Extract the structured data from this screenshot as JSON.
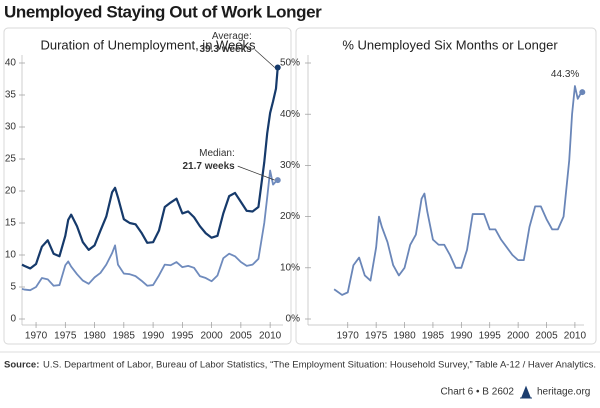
{
  "title": "Unemployed Staying Out of Work Longer",
  "chart_data": [
    {
      "type": "line",
      "title": "Duration of Unemployment, in Weeks",
      "x": [
        1967.6,
        1968,
        1969,
        1970,
        1971,
        1972,
        1973,
        1974,
        1975,
        1975.5,
        1976,
        1977,
        1978,
        1979,
        1980,
        1981,
        1982,
        1983,
        1983.5,
        1984,
        1985,
        1986,
        1987,
        1988,
        1989,
        1990,
        1991,
        1992,
        1993,
        1994,
        1995,
        1996,
        1997,
        1998,
        1999,
        2000,
        2001,
        2002,
        2003,
        2004,
        2005,
        2006,
        2007,
        2008,
        2009,
        2009.5,
        2010,
        2010.5,
        2011,
        2011.3
      ],
      "series": [
        {
          "name": "Average:",
          "end_label": "39.3 weeks",
          "color": "#163a6b",
          "values": [
            8.5,
            8.3,
            7.9,
            8.6,
            11.3,
            12.3,
            10.2,
            9.8,
            13,
            15.5,
            16.3,
            14.5,
            12,
            10.8,
            11.5,
            13.8,
            16,
            19.8,
            20.5,
            19,
            15.6,
            15,
            14.8,
            13.5,
            11.9,
            12,
            13.8,
            17.5,
            18.2,
            18.8,
            16.5,
            16.8,
            15.9,
            14.5,
            13.4,
            12.7,
            13,
            16.5,
            19.2,
            19.7,
            18.3,
            16.9,
            16.8,
            17.5,
            24.5,
            29,
            32.2,
            34,
            36,
            39.3
          ]
        },
        {
          "name": "Median:",
          "end_label": "21.7 weeks",
          "color": "#6f8bbd",
          "values": [
            4.7,
            4.6,
            4.5,
            5,
            6.4,
            6.2,
            5.2,
            5.3,
            8.4,
            9,
            8.2,
            7,
            6,
            5.5,
            6.5,
            7.2,
            8.5,
            10.3,
            11.5,
            8.5,
            7.1,
            7,
            6.7,
            6,
            5.2,
            5.3,
            6.8,
            8.5,
            8.4,
            8.9,
            8.1,
            8.3,
            8,
            6.7,
            6.4,
            5.9,
            6.8,
            9.5,
            10.2,
            9.8,
            8.9,
            8.3,
            8.5,
            9.4,
            15,
            19,
            23.2,
            21,
            21.5,
            21.7
          ]
        }
      ],
      "xlim": [
        1967.6,
        2012.2
      ],
      "xticks": [
        1970,
        1975,
        1980,
        1985,
        1990,
        1995,
        2000,
        2005,
        2010
      ],
      "ylim": [
        0,
        40
      ],
      "yticks": [
        0,
        5,
        10,
        15,
        20,
        25,
        30,
        35,
        40
      ]
    },
    {
      "type": "line",
      "title": "% Unemployed Six Months or Longer",
      "x": [
        1967.6,
        1968,
        1969,
        1970,
        1971,
        1972,
        1973,
        1974,
        1975,
        1975.5,
        1976,
        1977,
        1978,
        1979,
        1980,
        1981,
        1982,
        1983,
        1983.5,
        1984,
        1985,
        1986,
        1987,
        1988,
        1989,
        1990,
        1991,
        1992,
        1993,
        1994,
        1995,
        1996,
        1997,
        1998,
        1999,
        2000,
        2001,
        2002,
        2003,
        2004,
        2005,
        2006,
        2007,
        2008,
        2009,
        2009.5,
        2010,
        2010.5,
        2011,
        2011.3
      ],
      "series": [
        {
          "end_label": "44.3%",
          "color": "#6a86b8",
          "values": [
            5.8,
            5.5,
            4.7,
            5.2,
            10.5,
            12,
            8.5,
            7.5,
            14,
            20,
            18,
            15,
            10.5,
            8.5,
            10,
            14.5,
            16.5,
            23.5,
            24.5,
            21,
            15.5,
            14.5,
            14.5,
            12.5,
            10,
            10,
            13.5,
            20.5,
            20.5,
            20.5,
            17.5,
            17.5,
            15.5,
            14,
            12.5,
            11.5,
            11.5,
            18,
            22,
            22,
            19.5,
            17.5,
            17.5,
            20,
            31,
            40,
            45.5,
            43,
            44,
            44.3
          ]
        }
      ],
      "xlim": [
        1963,
        2011.6
      ],
      "xticks": [
        1970,
        1975,
        1980,
        1985,
        1990,
        1995,
        2000,
        2005,
        2010
      ],
      "ylim": [
        0,
        50
      ],
      "yticks": [
        {
          "value": 0,
          "label": "0%"
        },
        {
          "value": 10,
          "label": "10%"
        },
        {
          "value": 20,
          "label": "20%"
        },
        {
          "value": 30,
          "label": "30%"
        },
        {
          "value": 40,
          "label": "40%"
        },
        {
          "value": 50,
          "label": "50%"
        }
      ]
    }
  ],
  "source_label": "Source:",
  "source": "U.S. Department of Labor, Bureau of Labor Statistics, “The Employment Situation: Household Survey,” Table A-12 / Haver Analytics.",
  "footer": {
    "chart": "Chart 6 • B 2602",
    "site": "heritage.org"
  }
}
